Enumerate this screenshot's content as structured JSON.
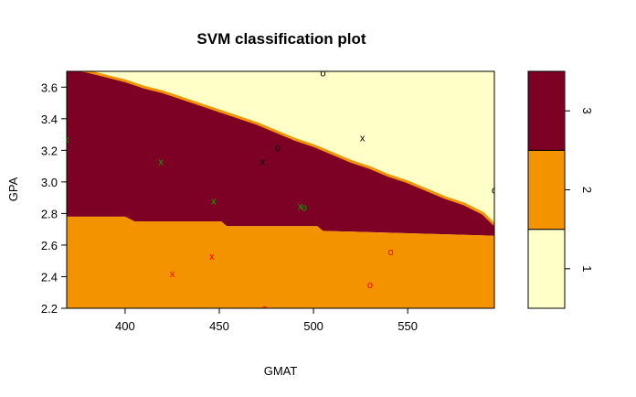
{
  "chart_data": {
    "type": "scatter",
    "title": "SVM classification plot",
    "xlabel": "GMAT",
    "ylabel": "GPA",
    "xlim": [
      369,
      596
    ],
    "ylim": [
      2.2,
      3.7
    ],
    "xticks": [
      400,
      450,
      500,
      550
    ],
    "yticks": [
      2.2,
      2.4,
      2.6,
      2.8,
      3.0,
      3.2,
      3.4,
      3.6
    ],
    "colors": {
      "class1": "#FFFFC8",
      "class2": "#F39300",
      "class3": "#7D0025",
      "boundary": "#F39300"
    },
    "legend": {
      "levels": [
        "1",
        "2",
        "3"
      ],
      "placement": "right"
    },
    "boundary_2_3": {
      "x": [
        369,
        400,
        405,
        451,
        454,
        502,
        505,
        595,
        596
      ],
      "y": [
        2.78,
        2.78,
        2.75,
        2.75,
        2.72,
        2.72,
        2.69,
        2.66,
        2.66
      ]
    },
    "boundary_1_3": {
      "x": [
        369,
        380,
        390,
        400,
        410,
        420,
        430,
        440,
        450,
        460,
        470,
        480,
        490,
        500,
        510,
        520,
        530,
        540,
        550,
        560,
        570,
        580,
        590,
        596
      ],
      "y": [
        3.72,
        3.7,
        3.67,
        3.64,
        3.6,
        3.57,
        3.53,
        3.49,
        3.45,
        3.41,
        3.37,
        3.32,
        3.27,
        3.23,
        3.18,
        3.13,
        3.09,
        3.04,
        3.0,
        2.95,
        2.9,
        2.86,
        2.8,
        2.73
      ]
    },
    "points": [
      {
        "gmat": 505,
        "gpa": 3.69,
        "marker": "o",
        "class": "1"
      },
      {
        "gmat": 526,
        "gpa": 3.28,
        "marker": "x",
        "class": "1"
      },
      {
        "gmat": 596,
        "gpa": 2.95,
        "marker": "o",
        "class": "1"
      },
      {
        "gmat": 481,
        "gpa": 3.22,
        "marker": "o",
        "class": "1"
      },
      {
        "gmat": 473,
        "gpa": 3.13,
        "marker": "x",
        "class": "1"
      },
      {
        "gmat": 369,
        "gpa": 3.27,
        "marker": "x",
        "class": "3"
      },
      {
        "gmat": 419,
        "gpa": 3.13,
        "marker": "x",
        "class": "3"
      },
      {
        "gmat": 447,
        "gpa": 2.88,
        "marker": "x",
        "class": "3"
      },
      {
        "gmat": 493,
        "gpa": 2.85,
        "marker": "x",
        "class": "3"
      },
      {
        "gmat": 495,
        "gpa": 2.84,
        "marker": "o",
        "class": "3"
      },
      {
        "gmat": 446,
        "gpa": 2.53,
        "marker": "x",
        "class": "2"
      },
      {
        "gmat": 425,
        "gpa": 2.42,
        "marker": "x",
        "class": "2"
      },
      {
        "gmat": 541,
        "gpa": 2.56,
        "marker": "o",
        "class": "2"
      },
      {
        "gmat": 530,
        "gpa": 2.35,
        "marker": "o",
        "class": "2"
      },
      {
        "gmat": 474,
        "gpa": 2.2,
        "marker": "o",
        "class": "2"
      }
    ],
    "point_colors": {
      "1": "#000000",
      "2": "#FF0000",
      "3": "#00AA00"
    }
  }
}
